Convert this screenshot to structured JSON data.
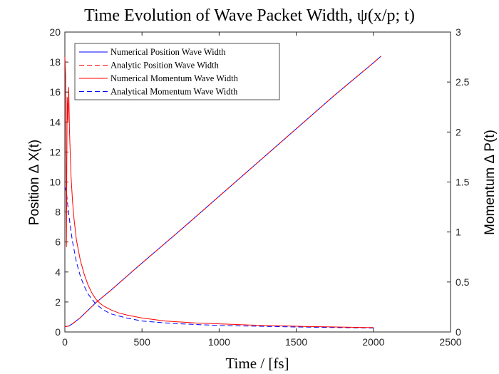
{
  "chart_data": {
    "type": "line",
    "title": "Time Evolution of Wave Packet Width, ψ(x/p; t)",
    "xlabel": "Time / [fs]",
    "ylabel_left": "Position Δ X(t)",
    "ylabel_right": "Momentum Δ P(t)",
    "xlim": [
      0,
      2500
    ],
    "ylim_left": [
      0,
      20
    ],
    "ylim_right": [
      0,
      3
    ],
    "x_ticks": [
      "0",
      "500",
      "1000",
      "1500",
      "2000",
      "2500"
    ],
    "y_left_ticks": [
      "0",
      "2",
      "4",
      "6",
      "8",
      "10",
      "12",
      "14",
      "16",
      "18",
      "20"
    ],
    "y_right_ticks": [
      "0",
      "0.5",
      "1",
      "1.5",
      "2",
      "2.5",
      "3"
    ],
    "grid": false,
    "legend_position": "top-left",
    "series": [
      {
        "name": "Numerical Position Wave Width",
        "axis": "left",
        "color": "#0000ff",
        "dash": "solid",
        "x": [
          0,
          25,
          50,
          100,
          150,
          200,
          300,
          400,
          500,
          750,
          1000,
          1250,
          1500,
          1750,
          2000,
          2050
        ],
        "y": [
          0.35,
          0.4,
          0.55,
          0.95,
          1.45,
          1.95,
          2.8,
          3.7,
          4.6,
          6.8,
          9.05,
          11.3,
          13.55,
          15.8,
          17.95,
          18.4
        ]
      },
      {
        "name": "Analytic Position Wave Width",
        "axis": "left",
        "color": "#ff0000",
        "dash": "dashed",
        "x": [
          0,
          25,
          50,
          100,
          150,
          200,
          300,
          400,
          500,
          750,
          1000,
          1250,
          1500,
          1750,
          2000,
          2050
        ],
        "y": [
          0.35,
          0.4,
          0.55,
          0.95,
          1.45,
          1.95,
          2.8,
          3.7,
          4.6,
          6.8,
          9.05,
          11.3,
          13.55,
          15.8,
          17.95,
          18.4
        ]
      },
      {
        "name": "Numerical Momentum Wave Width",
        "axis": "right",
        "color": "#ff0000",
        "dash": "solid",
        "x": [
          0,
          5,
          10,
          15,
          20,
          25,
          30,
          40,
          50,
          60,
          75,
          100,
          125,
          150,
          175,
          200,
          225,
          250,
          300,
          350,
          400,
          500,
          650,
          850,
          1200,
          1550,
          1950,
          2000
        ],
        "y": [
          2.75,
          2.55,
          0.85,
          2.35,
          2.1,
          2.45,
          2.0,
          1.55,
          1.3,
          1.12,
          0.92,
          0.72,
          0.58,
          0.47,
          0.39,
          0.33,
          0.29,
          0.26,
          0.22,
          0.19,
          0.17,
          0.14,
          0.11,
          0.09,
          0.07,
          0.055,
          0.045,
          0.045
        ]
      },
      {
        "name": "Analytical Momentum Wave Width",
        "axis": "right",
        "color": "#0000ff",
        "dash": "dashed",
        "x": [
          0,
          10,
          20,
          30,
          40,
          50,
          75,
          100,
          125,
          150,
          200,
          250,
          300,
          400,
          500,
          700,
          1000,
          1500,
          2000,
          2020
        ],
        "y": [
          1.45,
          1.4,
          1.25,
          1.12,
          1.0,
          0.9,
          0.7,
          0.56,
          0.46,
          0.38,
          0.28,
          0.22,
          0.18,
          0.14,
          0.11,
          0.085,
          0.065,
          0.05,
          0.04,
          0.04
        ]
      }
    ]
  }
}
